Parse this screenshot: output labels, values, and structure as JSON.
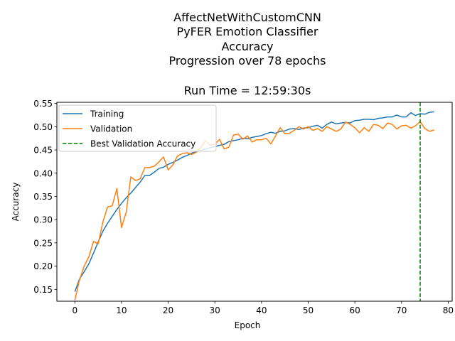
{
  "chart_data": {
    "type": "line",
    "title_lines": [
      "AffectNetWithCustomCNN",
      "PyFER Emotion Classifier",
      "Accuracy",
      "Progression over 78 epochs"
    ],
    "subtitle": "Run Time = 12:59:30s",
    "xlabel": "Epoch",
    "ylabel": "Accuracy",
    "xlim": [
      -3.85,
      80.85
    ],
    "ylim": [
      0.1245,
      0.5525
    ],
    "xticks": [
      0,
      10,
      20,
      30,
      40,
      50,
      60,
      70,
      80
    ],
    "yticks": [
      0.15,
      0.2,
      0.25,
      0.3,
      0.35,
      0.4,
      0.45,
      0.5,
      0.55
    ],
    "ytick_labels": [
      "0.15",
      "0.20",
      "0.25",
      "0.30",
      "0.35",
      "0.40",
      "0.45",
      "0.50",
      "0.55"
    ],
    "legend_position": "top-left",
    "grid": false,
    "series": [
      {
        "name": "Training",
        "color": "#1f77b4",
        "values": [
          0.145,
          0.172,
          0.188,
          0.205,
          0.228,
          0.252,
          0.275,
          0.292,
          0.307,
          0.322,
          0.335,
          0.347,
          0.357,
          0.369,
          0.381,
          0.395,
          0.395,
          0.402,
          0.41,
          0.413,
          0.419,
          0.423,
          0.428,
          0.434,
          0.438,
          0.443,
          0.446,
          0.449,
          0.452,
          0.455,
          0.457,
          0.46,
          0.462,
          0.468,
          0.47,
          0.472,
          0.475,
          0.474,
          0.477,
          0.479,
          0.481,
          0.485,
          0.488,
          0.486,
          0.49,
          0.491,
          0.495,
          0.496,
          0.494,
          0.497,
          0.498,
          0.501,
          0.503,
          0.497,
          0.505,
          0.51,
          0.506,
          0.508,
          0.509,
          0.508,
          0.513,
          0.514,
          0.516,
          0.516,
          0.515,
          0.518,
          0.519,
          0.521,
          0.521,
          0.525,
          0.521,
          0.521,
          0.53,
          0.524,
          0.528,
          0.527,
          0.531,
          0.532
        ]
      },
      {
        "name": "Validation",
        "color": "#ff7f0e",
        "values": [
          0.127,
          0.17,
          0.2,
          0.22,
          0.253,
          0.248,
          0.295,
          0.327,
          0.33,
          0.367,
          0.283,
          0.316,
          0.392,
          0.384,
          0.388,
          0.412,
          0.412,
          0.415,
          0.424,
          0.435,
          0.407,
          0.418,
          0.437,
          0.442,
          0.444,
          0.44,
          0.445,
          0.455,
          0.47,
          0.46,
          0.462,
          0.473,
          0.452,
          0.456,
          0.482,
          0.484,
          0.473,
          0.48,
          0.467,
          0.472,
          0.472,
          0.475,
          0.463,
          0.48,
          0.498,
          0.485,
          0.486,
          0.492,
          0.5,
          0.495,
          0.5,
          0.492,
          0.496,
          0.49,
          0.5,
          0.495,
          0.49,
          0.495,
          0.51,
          0.505,
          0.498,
          0.487,
          0.498,
          0.49,
          0.505,
          0.503,
          0.496,
          0.508,
          0.505,
          0.495,
          0.502,
          0.503,
          0.497,
          0.502,
          0.511,
          0.496,
          0.49,
          0.493
        ]
      }
    ],
    "best_line": {
      "name": "Best Validation Accuracy",
      "x": 74,
      "color": "#008000"
    }
  }
}
